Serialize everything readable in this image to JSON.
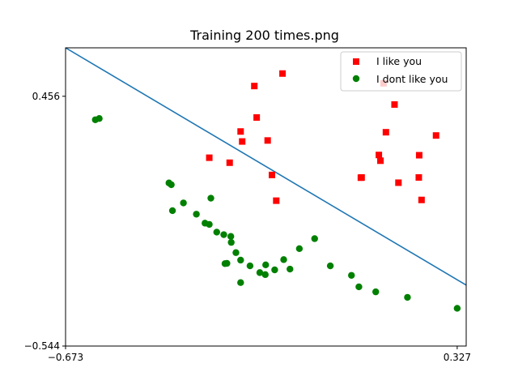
{
  "chart_data": {
    "type": "scatter",
    "title": "Training 200 times.png",
    "xlabel": "",
    "ylabel": "",
    "xlim": [
      -0.673,
      0.35
    ],
    "ylim": [
      -0.544,
      0.65
    ],
    "xticks": [
      -0.673,
      0.327
    ],
    "xtick_labels": [
      "−0.673",
      "0.327"
    ],
    "yticks": [
      0.456,
      -0.544
    ],
    "ytick_labels": [
      "0.456",
      "−0.544"
    ],
    "grid": false,
    "legend_position": "top-right",
    "series": [
      {
        "name": "I like you",
        "marker": "square",
        "color": "#ff0000",
        "x": [
          -0.191,
          -0.119,
          -0.185,
          -0.226,
          -0.157,
          -0.222,
          -0.306,
          -0.254,
          -0.146,
          -0.135,
          0.167,
          0.139,
          0.145,
          0.127,
          0.131,
          0.273,
          0.23,
          0.177,
          0.083,
          0.081,
          0.229,
          0.236
        ],
        "y": [
          0.497,
          0.547,
          0.371,
          0.315,
          0.279,
          0.275,
          0.21,
          0.19,
          0.141,
          0.038,
          0.423,
          0.508,
          0.312,
          0.221,
          0.198,
          0.299,
          0.22,
          0.11,
          0.131,
          0.13,
          0.131,
          0.041
        ]
      },
      {
        "name": "I dont like you",
        "marker": "circle",
        "color": "#008000",
        "x": [
          -0.597,
          -0.587,
          -0.409,
          -0.403,
          -0.302,
          -0.372,
          -0.339,
          -0.4,
          -0.317,
          -0.306,
          -0.269,
          -0.287,
          -0.251,
          -0.25,
          -0.238,
          -0.261,
          -0.266,
          -0.202,
          -0.226,
          -0.177,
          -0.226,
          -0.139,
          -0.163,
          -0.162,
          -0.116,
          -0.1,
          -0.076,
          -0.037,
          0.003,
          0.057,
          0.076,
          0.119,
          0.2,
          0.327
        ],
        "y": [
          0.362,
          0.367,
          0.109,
          0.102,
          0.048,
          0.029,
          -0.016,
          -0.002,
          -0.052,
          -0.057,
          -0.098,
          -0.088,
          -0.105,
          -0.129,
          -0.17,
          -0.213,
          -0.214,
          -0.223,
          -0.29,
          -0.25,
          -0.2,
          -0.239,
          -0.258,
          -0.219,
          -0.198,
          -0.236,
          -0.154,
          -0.114,
          -0.223,
          -0.261,
          -0.307,
          -0.327,
          -0.349,
          -0.393
        ]
      }
    ],
    "boundary_line": {
      "x": [
        -0.673,
        0.35
      ],
      "y": [
        0.65,
        -0.3
      ]
    }
  }
}
